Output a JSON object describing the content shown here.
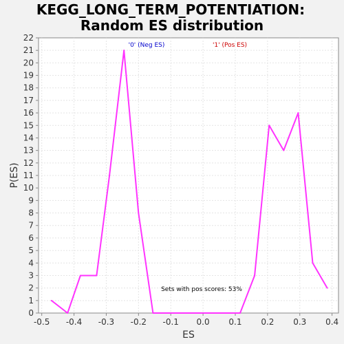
{
  "chart_data": {
    "type": "line",
    "title_line1": "KEGG_LONG_TERM_POTENTIATION:",
    "title_line2": "Random ES distribution",
    "xlabel": "ES",
    "ylabel": "P(ES)",
    "xlim": [
      -0.51,
      0.42
    ],
    "ylim": [
      0,
      22
    ],
    "x_ticks": [
      -0.5,
      -0.4,
      -0.3,
      -0.2,
      -0.1,
      0.0,
      0.1,
      0.2,
      0.3,
      0.4
    ],
    "x_tick_labels": [
      "-0.5",
      "-0.4",
      "-0.3",
      "-0.2",
      "-0.1",
      "0.0",
      "0.1",
      "0.2",
      "0.3",
      "0.4"
    ],
    "y_ticks": [
      0,
      1,
      2,
      3,
      4,
      5,
      6,
      7,
      8,
      9,
      10,
      11,
      12,
      13,
      14,
      15,
      16,
      17,
      18,
      19,
      20,
      21,
      22
    ],
    "grid": true,
    "legend": [
      {
        "label": "'0' (Neg ES)",
        "color": "#0000cc"
      },
      {
        "label": "'1' (Pos ES)",
        "color": "#cc0000"
      }
    ],
    "annotation": "Sets with pos scores: 53%",
    "series": [
      {
        "color": "#ff33ff",
        "x": [
          -0.47,
          -0.42,
          -0.38,
          -0.33,
          -0.29,
          -0.245,
          -0.2,
          -0.155,
          -0.11,
          0.0,
          0.115,
          0.16,
          0.205,
          0.25,
          0.295,
          0.34,
          0.385
        ],
        "y": [
          1,
          0,
          3,
          3,
          11,
          21,
          8,
          0,
          0,
          0,
          0,
          3,
          15,
          13,
          16,
          4,
          2
        ]
      }
    ]
  }
}
